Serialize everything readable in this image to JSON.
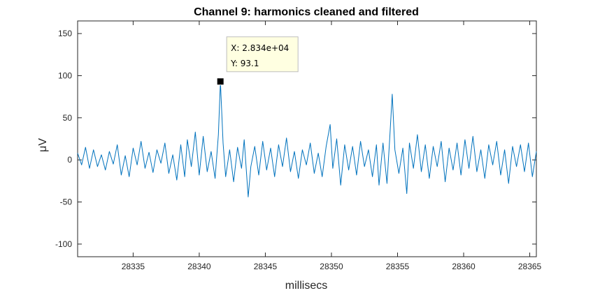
{
  "chart_data": {
    "type": "line",
    "title": "Channel 9: harmonics cleaned and filtered",
    "xlabel": "millisecs",
    "ylabel": "μV",
    "xlim": [
      28330.8,
      28365.5
    ],
    "ylim": [
      -115,
      165
    ],
    "xticks": [
      28335,
      28340,
      28345,
      28350,
      28355,
      28360,
      28365
    ],
    "yticks": [
      -100,
      -50,
      0,
      50,
      100,
      150
    ],
    "grid": false,
    "line_color": "#0072BD",
    "series": [
      {
        "name": "",
        "values": [
          [
            28330.8,
            8
          ],
          [
            28331.1,
            -6
          ],
          [
            28331.4,
            15
          ],
          [
            28331.7,
            -10
          ],
          [
            28332.0,
            12
          ],
          [
            28332.3,
            -8
          ],
          [
            28332.6,
            6
          ],
          [
            28332.9,
            -12
          ],
          [
            28333.2,
            10
          ],
          [
            28333.5,
            -5
          ],
          [
            28333.8,
            18
          ],
          [
            28334.1,
            -18
          ],
          [
            28334.4,
            5
          ],
          [
            28334.7,
            -20
          ],
          [
            28335.0,
            14
          ],
          [
            28335.3,
            -6
          ],
          [
            28335.6,
            22
          ],
          [
            28335.9,
            -10
          ],
          [
            28336.2,
            9
          ],
          [
            28336.5,
            -15
          ],
          [
            28336.8,
            12
          ],
          [
            28337.1,
            -4
          ],
          [
            28337.4,
            20
          ],
          [
            28337.7,
            -16
          ],
          [
            28338.0,
            6
          ],
          [
            28338.3,
            -24
          ],
          [
            28338.6,
            18
          ],
          [
            28338.9,
            -20
          ],
          [
            28339.1,
            24
          ],
          [
            28339.4,
            -8
          ],
          [
            28339.7,
            33
          ],
          [
            28340.0,
            -18
          ],
          [
            28340.3,
            28
          ],
          [
            28340.6,
            -14
          ],
          [
            28340.9,
            10
          ],
          [
            28341.2,
            -22
          ],
          [
            28341.45,
            30
          ],
          [
            28341.6,
            93.1
          ],
          [
            28341.8,
            20
          ],
          [
            28342.0,
            -20
          ],
          [
            28342.3,
            12
          ],
          [
            28342.6,
            -26
          ],
          [
            28342.9,
            15
          ],
          [
            28343.2,
            -10
          ],
          [
            28343.4,
            24
          ],
          [
            28343.7,
            -44
          ],
          [
            28343.9,
            -8
          ],
          [
            28344.2,
            16
          ],
          [
            28344.5,
            -18
          ],
          [
            28344.8,
            22
          ],
          [
            28345.1,
            -12
          ],
          [
            28345.4,
            14
          ],
          [
            28345.7,
            -20
          ],
          [
            28346.0,
            18
          ],
          [
            28346.3,
            -8
          ],
          [
            28346.6,
            26
          ],
          [
            28346.9,
            -14
          ],
          [
            28347.2,
            10
          ],
          [
            28347.5,
            -22
          ],
          [
            28347.8,
            12
          ],
          [
            28348.1,
            -6
          ],
          [
            28348.4,
            20
          ],
          [
            28348.7,
            -16
          ],
          [
            28349.0,
            8
          ],
          [
            28349.3,
            -20
          ],
          [
            28349.6,
            16
          ],
          [
            28349.9,
            42
          ],
          [
            28350.1,
            -10
          ],
          [
            28350.4,
            25
          ],
          [
            28350.7,
            -30
          ],
          [
            28351.0,
            18
          ],
          [
            28351.3,
            -12
          ],
          [
            28351.6,
            16
          ],
          [
            28351.9,
            -18
          ],
          [
            28352.2,
            22
          ],
          [
            28352.5,
            -8
          ],
          [
            28352.8,
            12
          ],
          [
            28353.1,
            -20
          ],
          [
            28353.4,
            18
          ],
          [
            28353.6,
            -30
          ],
          [
            28353.9,
            20
          ],
          [
            28354.2,
            -28
          ],
          [
            28354.4,
            24
          ],
          [
            28354.6,
            78
          ],
          [
            28354.8,
            12
          ],
          [
            28355.1,
            -16
          ],
          [
            28355.4,
            14
          ],
          [
            28355.7,
            -40
          ],
          [
            28355.9,
            20
          ],
          [
            28356.2,
            -10
          ],
          [
            28356.5,
            30
          ],
          [
            28356.8,
            -14
          ],
          [
            28357.1,
            18
          ],
          [
            28357.4,
            -22
          ],
          [
            28357.7,
            16
          ],
          [
            28358.0,
            -8
          ],
          [
            28358.3,
            22
          ],
          [
            28358.6,
            -26
          ],
          [
            28358.9,
            14
          ],
          [
            28359.2,
            -12
          ],
          [
            28359.5,
            20
          ],
          [
            28359.8,
            -18
          ],
          [
            28360.1,
            24
          ],
          [
            28360.4,
            -10
          ],
          [
            28360.7,
            28
          ],
          [
            28361.0,
            -14
          ],
          [
            28361.3,
            12
          ],
          [
            28361.6,
            -22
          ],
          [
            28361.9,
            18
          ],
          [
            28362.2,
            -6
          ],
          [
            28362.5,
            22
          ],
          [
            28362.8,
            -18
          ],
          [
            28363.1,
            12
          ],
          [
            28363.4,
            -28
          ],
          [
            28363.7,
            16
          ],
          [
            28364.0,
            -8
          ],
          [
            28364.3,
            18
          ],
          [
            28364.6,
            -14
          ],
          [
            28364.9,
            20
          ],
          [
            28365.2,
            -20
          ],
          [
            28365.5,
            10
          ]
        ]
      }
    ],
    "datatip": {
      "x_label": "X: 2.834e+04",
      "y_label": "Y: 93.1",
      "x": 28341.6,
      "y": 93.1
    }
  }
}
